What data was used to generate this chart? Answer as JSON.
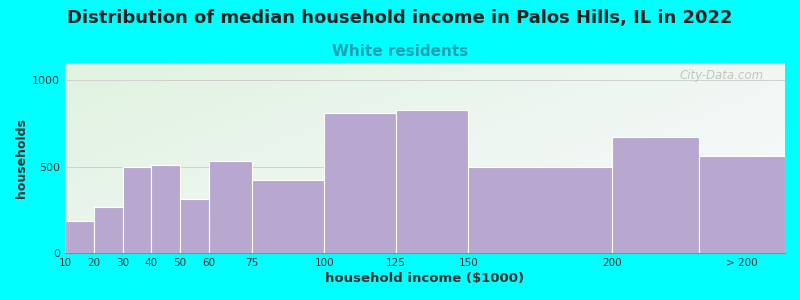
{
  "title": "Distribution of median household income in Palos Hills, IL in 2022",
  "subtitle": "White residents",
  "xlabel": "household income ($1000)",
  "ylabel": "households",
  "background_color": "#00FFFF",
  "bar_color": "#b8a8d0",
  "bar_edge_color": "#ffffff",
  "categories": [
    "10",
    "20",
    "30",
    "40",
    "50",
    "60",
    "75",
    "100",
    "125",
    "150",
    "200",
    "> 200"
  ],
  "values": [
    185,
    265,
    500,
    510,
    310,
    530,
    420,
    810,
    830,
    500,
    670,
    560
  ],
  "bar_lefts": [
    10,
    20,
    30,
    40,
    50,
    60,
    75,
    100,
    125,
    150,
    200,
    230
  ],
  "bar_rights": [
    20,
    30,
    40,
    50,
    60,
    75,
    100,
    125,
    150,
    200,
    230,
    260
  ],
  "tick_positions": [
    10,
    20,
    30,
    40,
    50,
    60,
    75,
    100,
    125,
    150,
    200,
    245
  ],
  "xlim": [
    10,
    260
  ],
  "ylim": [
    0,
    1100
  ],
  "yticks": [
    0,
    500,
    1000
  ],
  "title_fontsize": 13,
  "subtitle_fontsize": 11,
  "subtitle_color": "#20a0b0",
  "watermark": "City-Data.com",
  "gradient_tl": [
    0.88,
    0.95,
    0.88
  ],
  "gradient_br": [
    0.98,
    0.98,
    1.0
  ]
}
